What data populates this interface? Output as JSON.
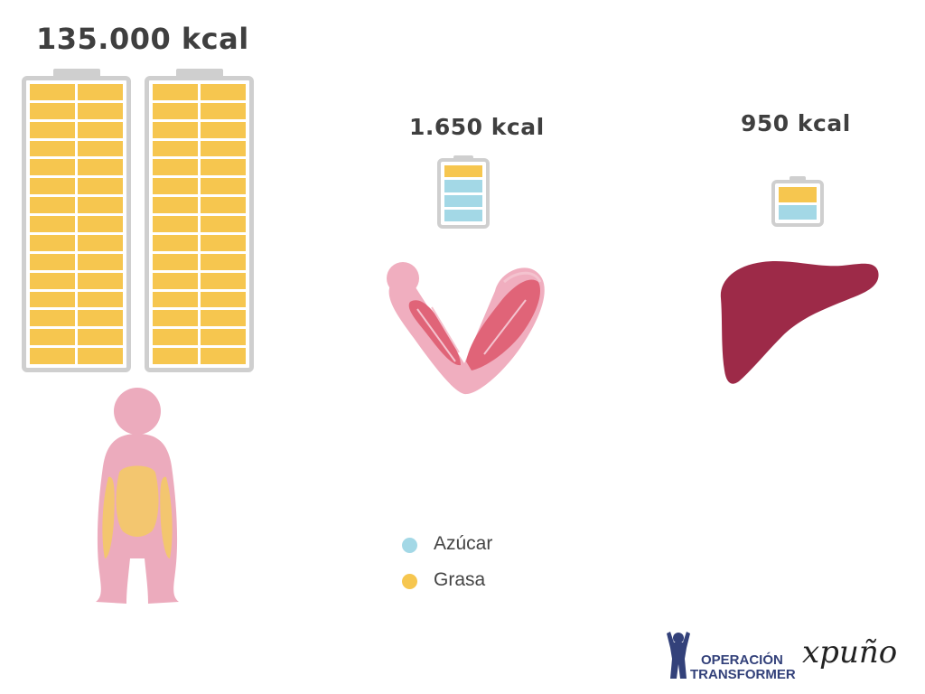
{
  "stores": [
    {
      "label": "135.000 kcal",
      "organ": "body"
    },
    {
      "label": "1.650 kcal",
      "organ": "muscle"
    },
    {
      "label": "950 kcal",
      "organ": "liver"
    }
  ],
  "legend": [
    {
      "label": "Azúcar",
      "color": "#a3d8e6"
    },
    {
      "label": "Grasa",
      "color": "#f6c64f"
    }
  ],
  "colors": {
    "fat": "#f6c64f",
    "sugar": "#a3d8e6",
    "battery_frame": "#cfcfcf",
    "body_pink": "#ecabbd",
    "muscle_light": "#f0aebf",
    "muscle_dark": "#e06478",
    "liver": "#9d2a48"
  },
  "logos": {
    "operacion_line1": "OPERACIÓN",
    "operacion_line2": "TRANSFORMER",
    "brand": "xpuño"
  }
}
